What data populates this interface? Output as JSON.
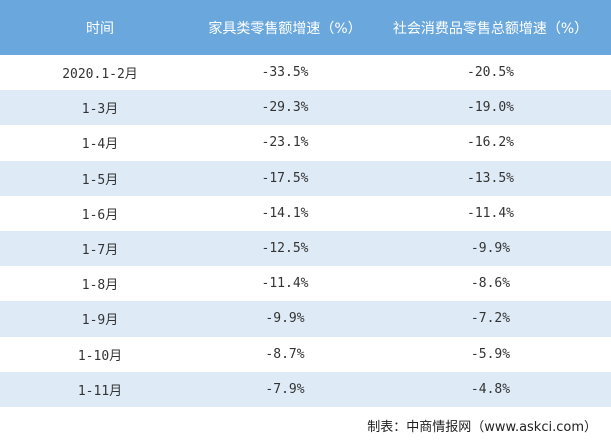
{
  "table": {
    "header": [
      "时间",
      "家具类零售额增速（%）",
      "社会消费品零售总额增速（%）"
    ],
    "rows": [
      [
        "2020.1-2月",
        "-33.5%",
        "-20.5%"
      ],
      [
        "1-3月",
        "-29.3%",
        "-19.0%"
      ],
      [
        "1-4月",
        "-23.1%",
        "-16.2%"
      ],
      [
        "1-5月",
        "-17.5%",
        "-13.5%"
      ],
      [
        "1-6月",
        "-14.1%",
        "-11.4%"
      ],
      [
        "1-7月",
        "-12.5%",
        "-9.9%"
      ],
      [
        "1-8月",
        "-11.4%",
        "-8.6%"
      ],
      [
        "1-9月",
        "-9.9%",
        "-7.2%"
      ],
      [
        "1-10月",
        "-8.7%",
        "-5.9%"
      ],
      [
        "1-11月",
        "-7.9%",
        "-4.8%"
      ]
    ]
  },
  "footer": "制表：中商情报网（www.askci.com）"
}
